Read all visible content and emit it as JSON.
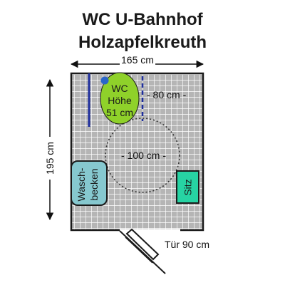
{
  "title": {
    "line1": "WC U-Bahnhof",
    "line2": "Holzapfelkreuth"
  },
  "dimensions": {
    "width_label": "165 cm",
    "height_label": "195 cm",
    "clearance_label": "- 80 cm -",
    "circle_label": "- 100 cm -",
    "door_label": "Tür 90 cm"
  },
  "fixtures": {
    "wc_line1": "WC",
    "wc_line2": "Höhe",
    "wc_line3": "51 cm",
    "sink_line1": "Wasch-",
    "sink_line2": "becken",
    "seat_label": "Sitz"
  },
  "colors": {
    "floor": "#b5b5b5",
    "tile_lines": "#ffffff",
    "wc": "#8fd12a",
    "sink": "#86c8cf",
    "seat": "#27d3a3",
    "grab_bar": "#1f2f9e",
    "outline": "#1a1a1a"
  }
}
